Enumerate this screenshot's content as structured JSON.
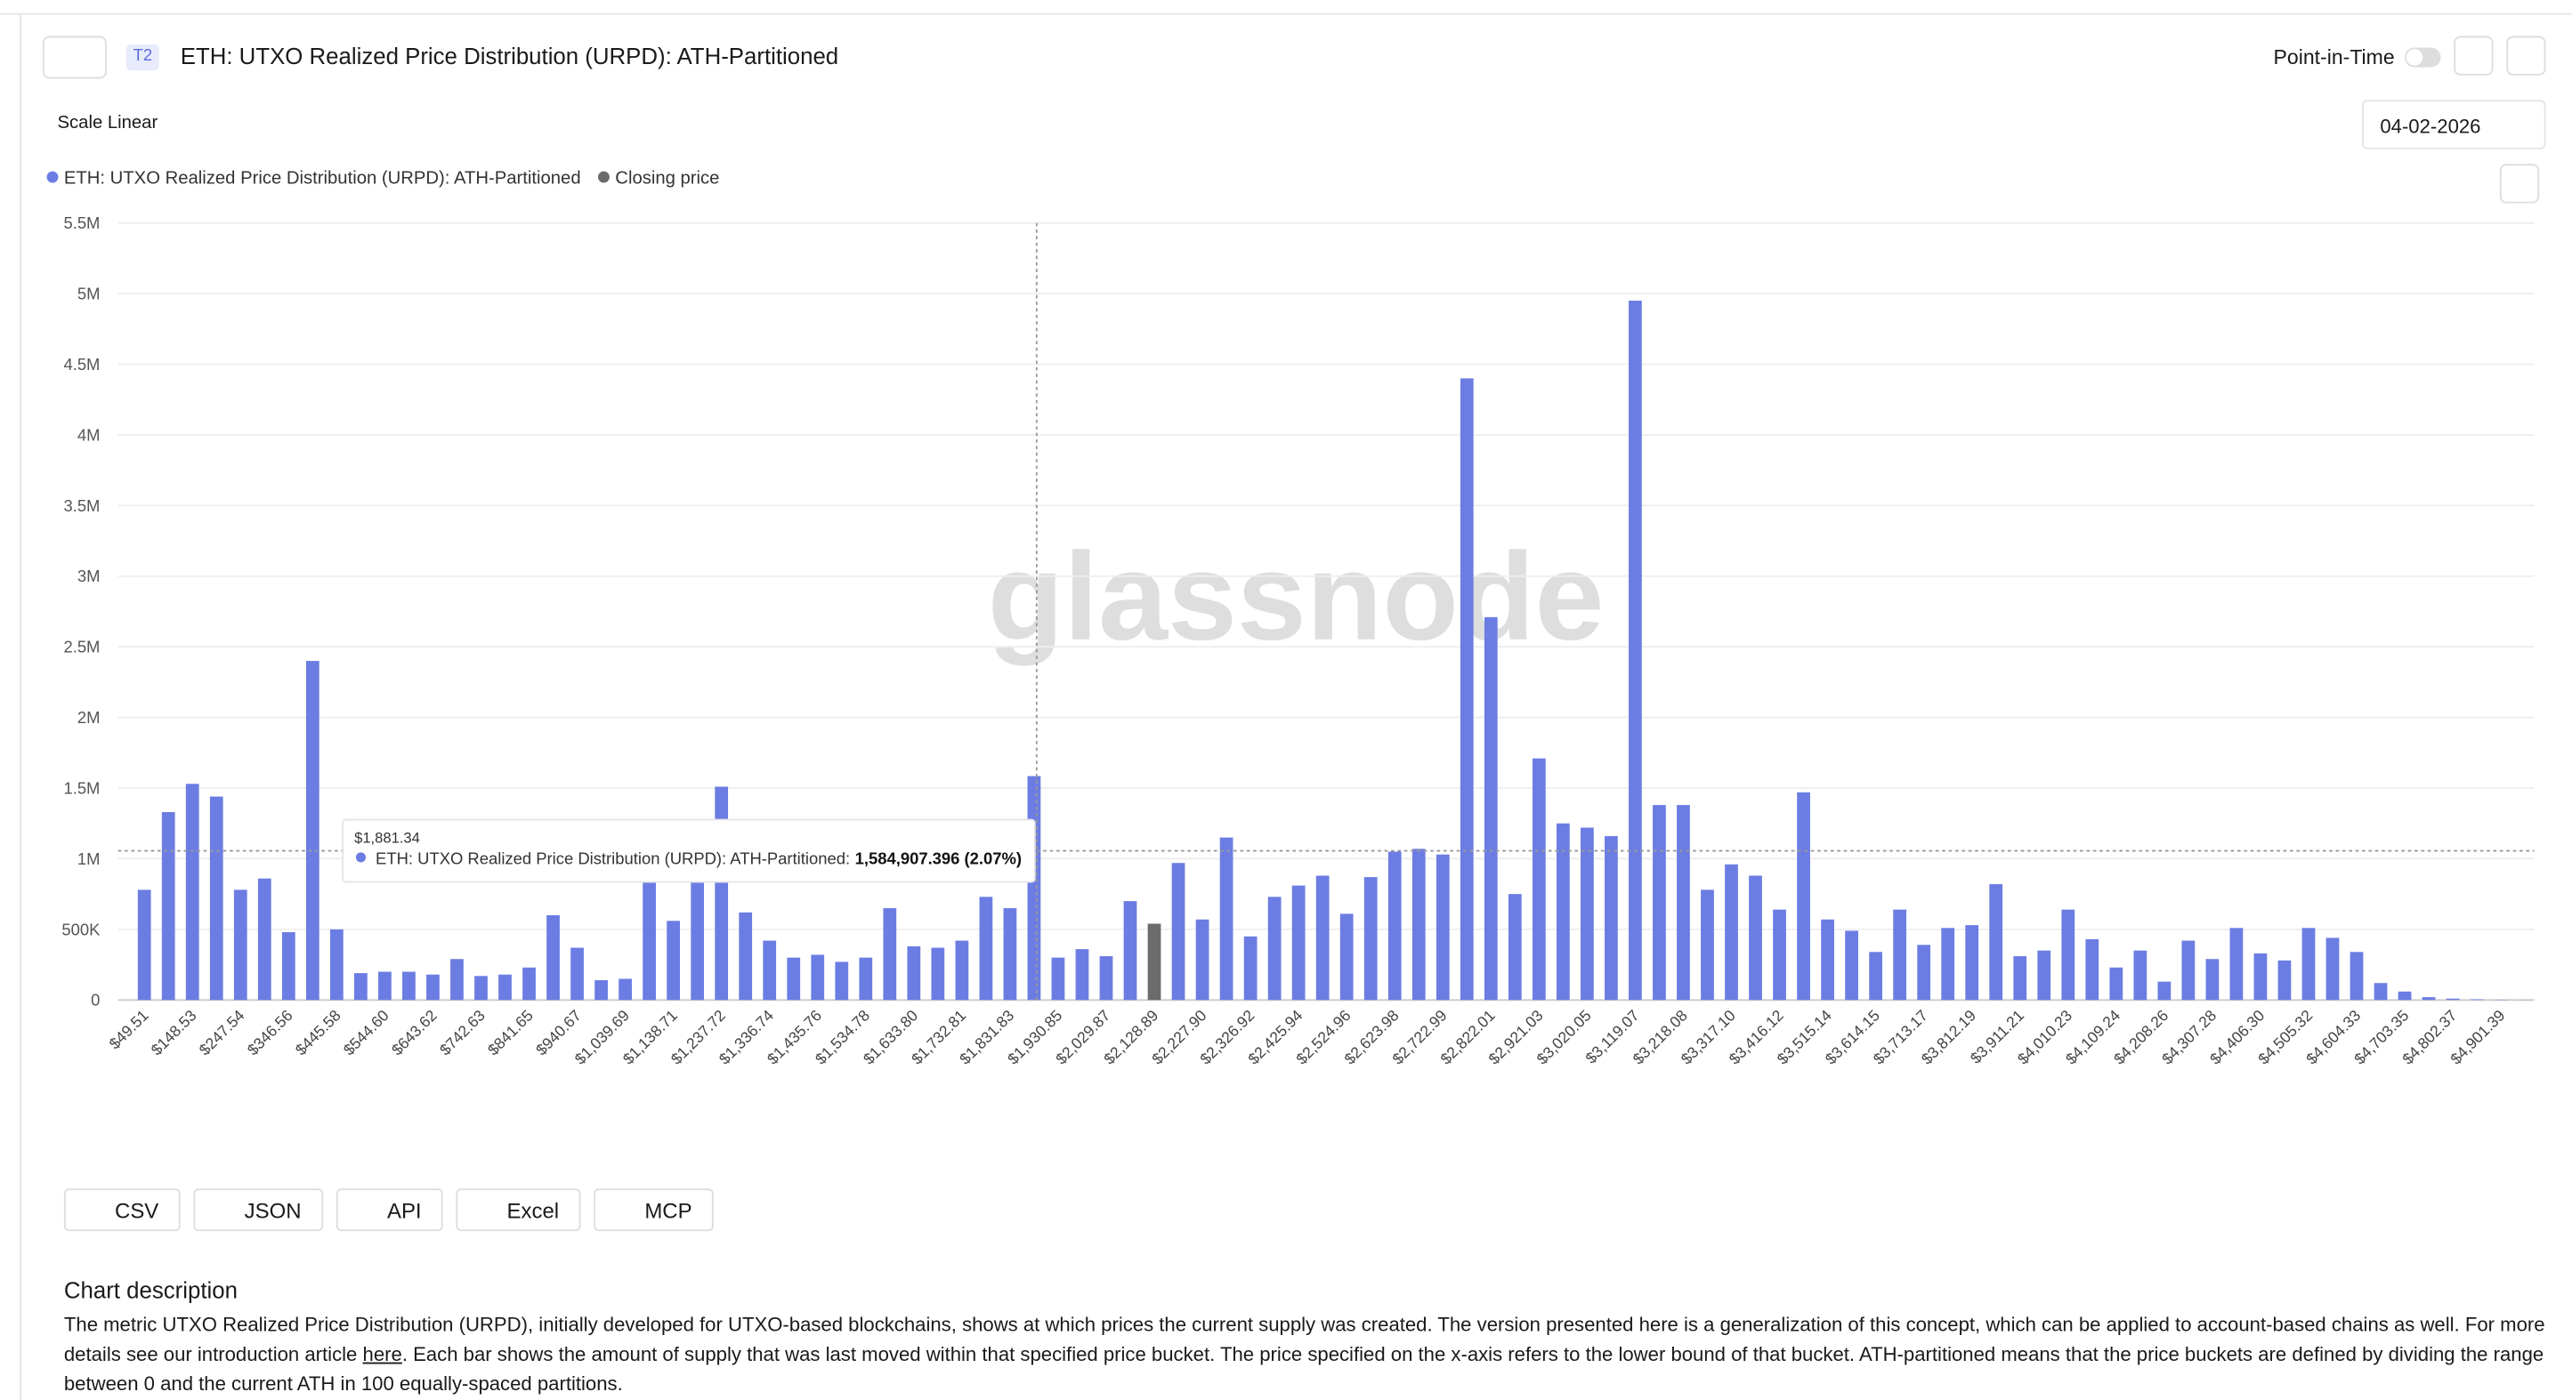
{
  "header": {
    "badge": "T2",
    "title": "ETH: UTXO Realized Price Distribution (URPD): ATH-Partitioned",
    "point_in_time": "Point-in-Time",
    "scale": "Scale Linear",
    "date": "04-02-2026"
  },
  "chart_data": {
    "type": "bar",
    "watermark": "glassnode",
    "categories": [
      "$49.51",
      null,
      "$148.53",
      null,
      "$247.54",
      null,
      "$346.56",
      null,
      "$445.58",
      null,
      "$544.60",
      null,
      "$643.62",
      null,
      "$742.63",
      null,
      "$841.65",
      null,
      "$940.67",
      null,
      "$1,039.69",
      null,
      "$1,138.71",
      null,
      "$1,237.72",
      null,
      "$1,336.74",
      null,
      "$1,435.76",
      null,
      "$1,534.78",
      null,
      "$1,633.80",
      null,
      "$1,732.81",
      null,
      "$1,831.83",
      null,
      "$1,930.85",
      null,
      "$2,029.87",
      null,
      "$2,128.89",
      null,
      "$2,227.90",
      null,
      "$2,326.92",
      null,
      "$2,425.94",
      null,
      "$2,524.96",
      null,
      "$2,623.98",
      null,
      "$2,722.99",
      null,
      "$2,822.01",
      null,
      "$2,921.03",
      null,
      "$3,020.05",
      null,
      "$3,119.07",
      null,
      "$3,218.08",
      null,
      "$3,317.10",
      null,
      "$3,416.12",
      null,
      "$3,515.14",
      null,
      "$3,614.15",
      null,
      "$3,713.17",
      null,
      "$3,812.19",
      null,
      "$3,911.21",
      null,
      "$4,010.23",
      null,
      "$4,109.24",
      null,
      "$4,208.26",
      null,
      "$4,307.28",
      null,
      "$4,406.30",
      null,
      "$4,505.32",
      null,
      "$4,604.33",
      null,
      "$4,703.35",
      null,
      "$4,802.37",
      null,
      "$4,901.39",
      null
    ],
    "series": [
      {
        "name": "ETH: UTXO Realized Price Distribution (URPD): ATH-Partitioned",
        "color": "#6b7de3",
        "values": [
          780000,
          1330000,
          1530000,
          1440000,
          780000,
          860000,
          480000,
          2400000,
          500000,
          190000,
          200000,
          200000,
          180000,
          290000,
          170000,
          180000,
          230000,
          600000,
          370000,
          140000,
          150000,
          870000,
          560000,
          870000,
          1510000,
          620000,
          420000,
          300000,
          320000,
          270000,
          300000,
          650000,
          380000,
          370000,
          420000,
          730000,
          650000,
          1584907.396,
          300000,
          360000,
          310000,
          700000,
          null,
          970000,
          570000,
          1150000,
          450000,
          730000,
          810000,
          880000,
          610000,
          870000,
          1050000,
          1070000,
          1030000,
          4400000,
          2710000,
          750000,
          1710000,
          1250000,
          1220000,
          1160000,
          4950000,
          1380000,
          1380000,
          780000,
          960000,
          880000,
          640000,
          1470000,
          570000,
          490000,
          340000,
          640000,
          390000,
          510000,
          530000,
          820000,
          310000,
          350000,
          640000,
          430000,
          230000,
          350000,
          130000,
          420000,
          290000,
          510000,
          330000,
          280000,
          510000,
          440000,
          340000,
          120000,
          60000,
          20000,
          10000,
          5000,
          2000,
          1000
        ]
      },
      {
        "name": "Closing price",
        "color": "#6b6b6b",
        "values": [
          null,
          null,
          null,
          null,
          null,
          null,
          null,
          null,
          null,
          null,
          null,
          null,
          null,
          null,
          null,
          null,
          null,
          null,
          null,
          null,
          null,
          null,
          null,
          null,
          null,
          null,
          null,
          null,
          null,
          null,
          null,
          null,
          null,
          null,
          null,
          null,
          null,
          null,
          null,
          null,
          null,
          null,
          540000,
          null,
          null,
          null,
          null,
          null,
          null,
          null,
          null,
          null,
          null,
          null,
          null,
          null,
          null,
          null,
          null,
          null,
          null,
          null,
          null,
          null,
          null,
          null,
          null,
          null,
          null,
          null,
          null,
          null,
          null,
          null,
          null,
          null,
          null,
          null,
          null,
          null,
          null,
          null,
          null,
          null,
          null,
          null,
          null,
          null,
          null,
          null,
          null,
          null,
          null,
          null,
          null,
          null,
          null,
          null,
          null,
          null
        ]
      }
    ],
    "ylim": [
      0,
      5500000
    ],
    "yticks": [
      0,
      {
        "value": 500000,
        "label": "500K"
      },
      {
        "value": 1000000,
        "label": "1M"
      },
      {
        "value": 1500000,
        "label": "1.5M"
      },
      {
        "value": 2000000,
        "label": "2M"
      },
      {
        "value": 2500000,
        "label": "2.5M"
      },
      {
        "value": 3000000,
        "label": "3M"
      },
      {
        "value": 3500000,
        "label": "3.5M"
      },
      {
        "value": 4000000,
        "label": "4M"
      },
      {
        "value": 4500000,
        "label": "4.5M"
      },
      {
        "value": 5000000,
        "label": "5M"
      },
      {
        "value": 5500000,
        "label": "5.5M"
      }
    ],
    "grid": true,
    "tooltip": {
      "title": "$1,881.34",
      "label": "ETH: UTXO Realized Price Distribution (URPD): ATH-Partitioned:",
      "value": "1,584,907.396 (2.07%)"
    }
  },
  "buttons": [
    "CSV",
    "JSON",
    "API",
    "Excel",
    "MCP"
  ],
  "description": {
    "heading": "Chart description",
    "parts": [
      "The metric UTXO Realized Price Distribution (URPD), initially developed for UTXO-based blockchains, shows at which prices the current supply was created. The version presented here is a generalization of this concept, which can be applied to account-based chains as well. For more details see our introduction article ",
      "here",
      ". Each bar shows the amount of supply that was last moved within that specified price bucket. The price specified on the x-axis refers to the lower bound of that bucket. ATH-partitioned means that the price buckets are defined by dividing the range between 0 and the current ATH in 100 equally-spaced partitions."
    ]
  }
}
